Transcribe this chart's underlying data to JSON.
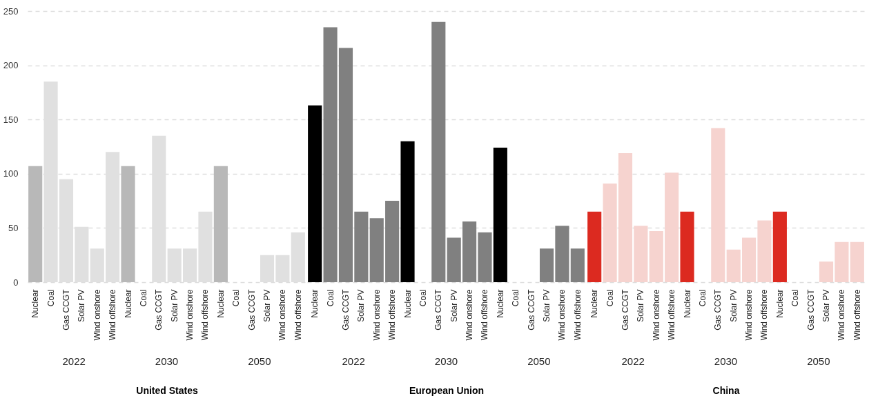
{
  "chart_data": [
    {
      "type": "bar",
      "xlabel": "United States",
      "categories": [
        "Nuclear",
        "Coal",
        "Gas CCGT",
        "Solar PV",
        "Wind onshore",
        "Wind offshore",
        "Nuclear",
        "Coal",
        "Gas CCGT",
        "Solar PV",
        "Wind onshore",
        "Wind offshore",
        "Nuclear",
        "Coal",
        "Gas CCGT",
        "Solar PV",
        "Wind onshore",
        "Wind offshore"
      ],
      "values": [
        107,
        185,
        95,
        51,
        31,
        120,
        107,
        0,
        135,
        31,
        31,
        65,
        107,
        0,
        0,
        25,
        25,
        46
      ],
      "colors": [
        "#b8b8b8",
        "#e0e0e0",
        "#e0e0e0",
        "#e0e0e0",
        "#e0e0e0",
        "#e0e0e0",
        "#b8b8b8",
        "#e0e0e0",
        "#e0e0e0",
        "#e0e0e0",
        "#e0e0e0",
        "#e0e0e0",
        "#b8b8b8",
        "#e0e0e0",
        "#e0e0e0",
        "#e0e0e0",
        "#e0e0e0",
        "#e0e0e0"
      ],
      "annotations": [
        "2022",
        "2030",
        "2050"
      ],
      "ylim": [
        0,
        250
      ],
      "yticks": [
        0,
        50,
        100,
        150,
        200,
        250
      ],
      "grid": "y"
    },
    {
      "type": "bar",
      "xlabel": "European Union",
      "categories": [
        "Nuclear",
        "Coal",
        "Gas CCGT",
        "Solar PV",
        "Wind onshore",
        "Wind offshore",
        "Nuclear",
        "Coal",
        "Gas CCGT",
        "Solar PV",
        "Wind onshore",
        "Wind offshore",
        "Nuclear",
        "Coal",
        "Gas CCGT",
        "Solar PV",
        "Wind onshore",
        "Wind offshore"
      ],
      "values": [
        163,
        235,
        216,
        65,
        59,
        75,
        130,
        0,
        240,
        41,
        56,
        46,
        124,
        0,
        0,
        31,
        52,
        31
      ],
      "colors": [
        "#000000",
        "#808080",
        "#808080",
        "#808080",
        "#808080",
        "#808080",
        "#000000",
        "#808080",
        "#808080",
        "#808080",
        "#808080",
        "#808080",
        "#000000",
        "#808080",
        "#808080",
        "#808080",
        "#808080",
        "#808080"
      ],
      "annotations": [
        "2022",
        "2030",
        "2050"
      ],
      "ylim": [
        0,
        250
      ],
      "yticks": [
        0,
        50,
        100,
        150,
        200,
        250
      ],
      "grid": "y",
      "tick_labels": "x"
    },
    {
      "type": "bar",
      "xlabel": "China",
      "categories": [
        "Nuclear",
        "Coal",
        "Gas CCGT",
        "Solar PV",
        "Wind onshore",
        "Wind offshore",
        "Nuclear",
        "Coal",
        "Gas CCGT",
        "Solar PV",
        "Wind onshore",
        "Wind offshore",
        "Nuclear",
        "Coal",
        "Gas CCGT",
        "Solar PV",
        "Wind onshore",
        "Wind offshore"
      ],
      "values": [
        65,
        91,
        119,
        52,
        47,
        101,
        65,
        0,
        142,
        30,
        41,
        57,
        65,
        0,
        0,
        19,
        37,
        37
      ],
      "colors": [
        "#dc2a20",
        "#f6d3cf",
        "#f6d3cf",
        "#f6d3cf",
        "#f6d3cf",
        "#f6d3cf",
        "#dc2a20",
        "#f6d3cf",
        "#f6d3cf",
        "#f6d3cf",
        "#f6d3cf",
        "#f6d3cf",
        "#dc2a20",
        "#f6d3cf",
        "#f6d3cf",
        "#f6d3cf",
        "#f6d3cf",
        "#f6d3cf"
      ],
      "annotations": [
        "2022",
        "2030",
        "2050"
      ],
      "ylim": [
        0,
        250
      ],
      "yticks": [
        0,
        50,
        100,
        150,
        200,
        250
      ],
      "grid": "y",
      "tick_labels": "x"
    }
  ]
}
